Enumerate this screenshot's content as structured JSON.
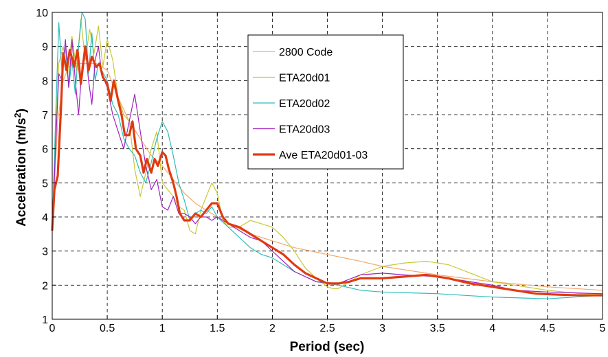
{
  "chart_data": {
    "type": "line",
    "xlabel": "Period (sec)",
    "ylabel": {
      "main": "Acceleration (m/s",
      "sup": "2",
      "end": ")"
    },
    "xlim": [
      0,
      5
    ],
    "ylim": [
      1,
      10
    ],
    "xticks": [
      "0",
      "0.5",
      "1",
      "1.5",
      "2",
      "2.5",
      "3",
      "3.5",
      "4",
      "4.5",
      "5"
    ],
    "yticks": [
      "1",
      "2",
      "3",
      "4",
      "5",
      "6",
      "7",
      "8",
      "9",
      "10"
    ],
    "grid": true,
    "legend_position": "top-center",
    "series": [
      {
        "name": "2800 Code",
        "color": "#f5a86a",
        "width": 1.2,
        "x": [
          0,
          0.05,
          0.1,
          0.15,
          0.2,
          0.3,
          0.4,
          0.5,
          0.6,
          0.7,
          0.8,
          0.9,
          1.0,
          1.1,
          1.2,
          1.3,
          1.4,
          1.5,
          1.6,
          1.8,
          2.0,
          2.2,
          2.5,
          2.8,
          3.0,
          3.5,
          4.0,
          4.5,
          5.0
        ],
        "y": [
          3.6,
          6.8,
          8.0,
          8.4,
          8.5,
          8.5,
          8.5,
          8.3,
          7.5,
          6.8,
          6.3,
          5.8,
          5.5,
          5.1,
          4.7,
          4.4,
          4.2,
          4.0,
          3.8,
          3.5,
          3.3,
          3.1,
          2.9,
          2.7,
          2.55,
          2.3,
          2.1,
          1.95,
          1.85
        ]
      },
      {
        "name": "ETA20d01",
        "color": "#c8c832",
        "width": 1.2,
        "x": [
          0,
          0.03,
          0.06,
          0.1,
          0.14,
          0.18,
          0.22,
          0.26,
          0.3,
          0.34,
          0.38,
          0.42,
          0.46,
          0.5,
          0.55,
          0.6,
          0.65,
          0.7,
          0.75,
          0.8,
          0.85,
          0.9,
          0.95,
          1.0,
          1.05,
          1.1,
          1.15,
          1.2,
          1.25,
          1.3,
          1.35,
          1.4,
          1.45,
          1.5,
          1.55,
          1.6,
          1.7,
          1.8,
          1.9,
          2.0,
          2.1,
          2.2,
          2.3,
          2.4,
          2.5,
          2.55,
          2.6,
          2.8,
          3.0,
          3.2,
          3.4,
          3.6,
          3.8,
          4.0,
          4.2,
          4.5,
          4.8,
          5.0
        ],
        "y": [
          3.6,
          6.5,
          8.5,
          9.0,
          8.2,
          9.3,
          8.3,
          9.8,
          8.6,
          9.5,
          8.8,
          9.6,
          8.4,
          9.2,
          8.6,
          7.5,
          7.0,
          6.8,
          5.4,
          4.6,
          5.3,
          6.0,
          6.5,
          5.0,
          4.8,
          4.6,
          4.3,
          4.2,
          3.6,
          3.5,
          4.2,
          4.6,
          5.0,
          4.7,
          3.9,
          3.7,
          3.7,
          3.9,
          3.8,
          3.7,
          3.4,
          3.0,
          2.5,
          2.2,
          1.95,
          1.9,
          1.9,
          2.3,
          2.55,
          2.65,
          2.7,
          2.6,
          2.35,
          2.1,
          2.0,
          1.85,
          1.75,
          1.75
        ]
      },
      {
        "name": "ETA20d02",
        "color": "#2cbcbc",
        "width": 1.2,
        "x": [
          0,
          0.03,
          0.06,
          0.09,
          0.12,
          0.15,
          0.18,
          0.21,
          0.24,
          0.27,
          0.3,
          0.33,
          0.36,
          0.39,
          0.42,
          0.45,
          0.5,
          0.55,
          0.6,
          0.65,
          0.7,
          0.75,
          0.8,
          0.85,
          0.9,
          0.95,
          1.0,
          1.05,
          1.1,
          1.15,
          1.2,
          1.25,
          1.3,
          1.35,
          1.4,
          1.45,
          1.5,
          1.6,
          1.7,
          1.8,
          1.9,
          2.0,
          2.2,
          2.4,
          2.6,
          2.8,
          3.0,
          3.5,
          4.0,
          4.5,
          5.0
        ],
        "y": [
          3.6,
          6.8,
          9.7,
          8.2,
          9.0,
          7.8,
          8.6,
          7.6,
          9.0,
          10.0,
          9.8,
          8.2,
          9.4,
          8.0,
          8.5,
          8.3,
          8.0,
          7.3,
          7.0,
          6.3,
          6.0,
          5.8,
          5.3,
          5.0,
          5.6,
          6.3,
          6.8,
          6.5,
          5.8,
          5.0,
          4.5,
          3.9,
          4.1,
          4.2,
          4.1,
          4.3,
          4.0,
          3.7,
          3.4,
          3.1,
          2.9,
          2.8,
          2.4,
          2.1,
          2.0,
          1.85,
          1.8,
          1.75,
          1.65,
          1.6,
          1.7
        ]
      },
      {
        "name": "ETA20d03",
        "color": "#a020c0",
        "width": 1.2,
        "x": [
          0,
          0.03,
          0.06,
          0.09,
          0.12,
          0.15,
          0.18,
          0.21,
          0.24,
          0.27,
          0.3,
          0.33,
          0.36,
          0.39,
          0.42,
          0.45,
          0.5,
          0.55,
          0.6,
          0.65,
          0.7,
          0.75,
          0.8,
          0.85,
          0.9,
          0.95,
          1.0,
          1.05,
          1.1,
          1.15,
          1.2,
          1.25,
          1.3,
          1.35,
          1.4,
          1.45,
          1.5,
          1.6,
          1.7,
          1.8,
          1.9,
          2.0,
          2.2,
          2.4,
          2.6,
          2.8,
          3.0,
          3.2,
          3.5,
          3.8,
          4.0,
          4.2,
          4.5,
          5.0
        ],
        "y": [
          3.6,
          6.0,
          8.2,
          8.0,
          9.2,
          7.8,
          9.2,
          8.0,
          7.0,
          8.4,
          9.0,
          8.0,
          7.3,
          8.6,
          9.0,
          8.2,
          7.8,
          7.0,
          6.5,
          6.0,
          6.8,
          7.6,
          6.5,
          5.5,
          4.8,
          5.1,
          4.3,
          4.2,
          4.6,
          4.1,
          4.1,
          4.0,
          3.8,
          4.0,
          4.0,
          3.9,
          4.0,
          3.8,
          3.6,
          3.4,
          3.3,
          3.0,
          2.4,
          2.1,
          2.05,
          2.3,
          2.35,
          2.3,
          2.25,
          2.1,
          2.0,
          1.85,
          1.8,
          1.75
        ]
      },
      {
        "name": "Ave ETA20d01-03",
        "color": "#e03a10",
        "width": 3.2,
        "x": [
          0,
          0.02,
          0.05,
          0.08,
          0.1,
          0.13,
          0.16,
          0.2,
          0.23,
          0.26,
          0.3,
          0.33,
          0.36,
          0.4,
          0.43,
          0.46,
          0.5,
          0.53,
          0.56,
          0.6,
          0.63,
          0.66,
          0.7,
          0.73,
          0.76,
          0.8,
          0.83,
          0.86,
          0.9,
          0.93,
          0.96,
          1.0,
          1.03,
          1.06,
          1.1,
          1.13,
          1.16,
          1.2,
          1.25,
          1.3,
          1.35,
          1.4,
          1.45,
          1.5,
          1.55,
          1.6,
          1.7,
          1.8,
          1.9,
          2.0,
          2.1,
          2.2,
          2.3,
          2.4,
          2.5,
          2.6,
          2.7,
          2.8,
          3.0,
          3.2,
          3.4,
          3.6,
          3.8,
          4.0,
          4.2,
          4.4,
          4.6,
          4.8,
          5.0
        ],
        "y": [
          3.6,
          4.8,
          5.2,
          7.2,
          8.8,
          8.3,
          8.9,
          8.4,
          8.9,
          7.9,
          9.0,
          8.3,
          8.7,
          8.4,
          8.5,
          8.1,
          7.9,
          7.4,
          8.0,
          7.4,
          7.0,
          6.4,
          6.4,
          6.8,
          6.0,
          5.8,
          5.3,
          5.7,
          5.3,
          5.7,
          5.5,
          5.9,
          5.8,
          5.4,
          5.0,
          4.6,
          4.1,
          3.9,
          3.9,
          4.1,
          4.0,
          4.2,
          4.4,
          4.4,
          4.0,
          3.8,
          3.7,
          3.5,
          3.3,
          3.1,
          2.9,
          2.6,
          2.35,
          2.2,
          2.05,
          2.05,
          2.1,
          2.2,
          2.2,
          2.25,
          2.3,
          2.2,
          2.05,
          1.95,
          1.85,
          1.75,
          1.72,
          1.7,
          1.7
        ]
      }
    ]
  }
}
